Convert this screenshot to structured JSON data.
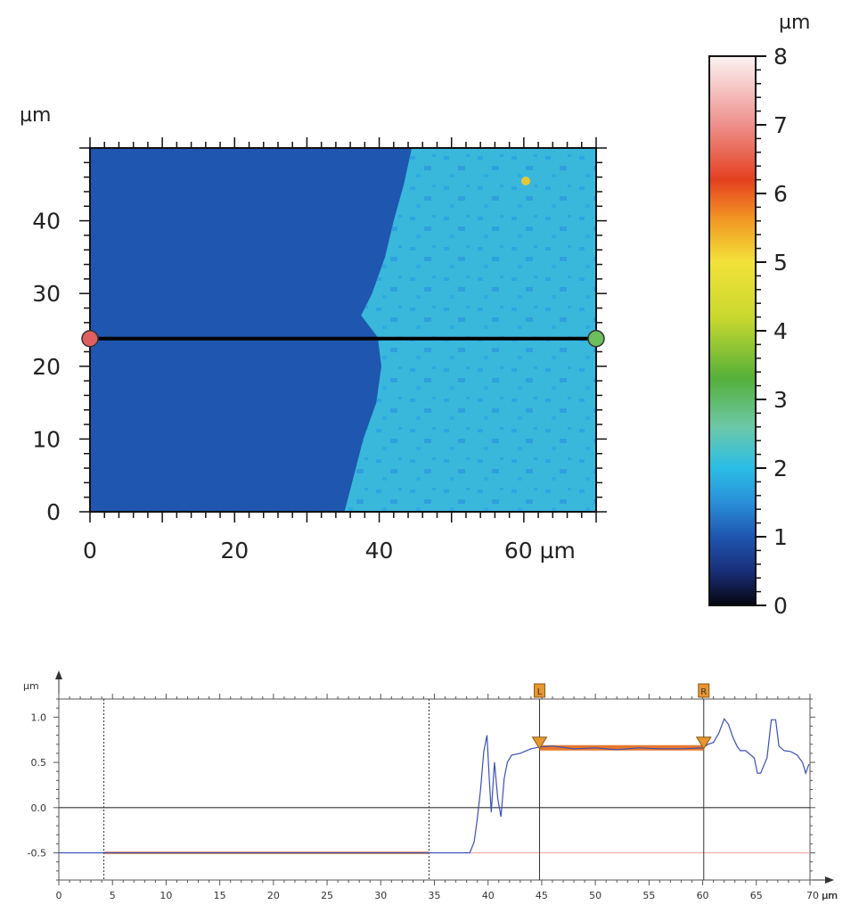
{
  "chart_data": [
    {
      "type": "heatmap",
      "xlabel_unit": "µm",
      "ylabel_unit": "µm",
      "xlim": [
        0,
        70
      ],
      "ylim": [
        0,
        50
      ],
      "x_ticks": [
        "0",
        "20",
        "40",
        "60 µm"
      ],
      "x_tick_values": [
        0,
        20,
        40,
        60
      ],
      "y_ticks": [
        "0",
        "10",
        "20",
        "30",
        "40"
      ],
      "y_tick_values": [
        0,
        10,
        20,
        30,
        40
      ],
      "description_values": {
        "left_region_height_um": 1.0,
        "right_region_height_um": 2.2,
        "boundary_x_um": [
          [
            0,
            35.2
          ],
          [
            5,
            36.5
          ],
          [
            10,
            37.8
          ],
          [
            15,
            39.6
          ],
          [
            20,
            40.3
          ],
          [
            24,
            39.8
          ],
          [
            27,
            37.5
          ],
          [
            30,
            39.0
          ],
          [
            35,
            40.8
          ],
          [
            40,
            42.0
          ],
          [
            45,
            43.4
          ],
          [
            50,
            44.5
          ]
        ]
      },
      "profile_line_y_um": 23.8,
      "colorbar": {
        "unit": "µm",
        "range": [
          0,
          8
        ],
        "ticks": [
          "0",
          "1",
          "2",
          "3",
          "4",
          "5",
          "6",
          "7",
          "8"
        ],
        "tick_values": [
          0,
          1,
          2,
          3,
          4,
          5,
          6,
          7,
          8
        ],
        "colormap_stops": [
          {
            "value": 0,
            "color": "#05050f"
          },
          {
            "value": 0.5,
            "color": "#1a2f7a"
          },
          {
            "value": 1,
            "color": "#1f56b0"
          },
          {
            "value": 1.5,
            "color": "#2a8fd8"
          },
          {
            "value": 2,
            "color": "#2bbde6"
          },
          {
            "value": 2.6,
            "color": "#6cc8a8"
          },
          {
            "value": 3.3,
            "color": "#55b03a"
          },
          {
            "value": 4.2,
            "color": "#c9d82e"
          },
          {
            "value": 5,
            "color": "#f2e23a"
          },
          {
            "value": 5.6,
            "color": "#f29a24"
          },
          {
            "value": 6.2,
            "color": "#e4401f"
          },
          {
            "value": 7,
            "color": "#ee8f8c"
          },
          {
            "value": 8,
            "color": "#fbf3f3"
          }
        ]
      }
    },
    {
      "type": "line",
      "ylabel": "µm",
      "xlabel": "µm",
      "xlim": [
        0,
        70
      ],
      "ylim": [
        -0.8,
        1.2
      ],
      "x_ticks": [
        "0",
        "5",
        "10",
        "15",
        "20",
        "25",
        "30",
        "35",
        "40",
        "45",
        "50",
        "55",
        "60",
        "65",
        "70 µm"
      ],
      "x_tick_values": [
        0,
        5,
        10,
        15,
        20,
        25,
        30,
        35,
        40,
        45,
        50,
        55,
        60,
        65,
        70
      ],
      "y_ticks": [
        "-0.5",
        "0.0",
        "0.5",
        "1.0"
      ],
      "y_tick_values": [
        -0.5,
        0.0,
        0.5,
        1.0
      ],
      "x": [
        0,
        4,
        10,
        20,
        30,
        34.5,
        37,
        38.3,
        38.7,
        39.0,
        39.3,
        39.6,
        39.9,
        40.1,
        40.3,
        40.6,
        40.9,
        41.2,
        41.5,
        41.8,
        42.2,
        43,
        44,
        44.8,
        46,
        48,
        50,
        52,
        54,
        56,
        58,
        60,
        60.5,
        61,
        61.5,
        62,
        62.4,
        62.8,
        63.2,
        63.5,
        64,
        64.8,
        65.1,
        65.4,
        66,
        66.4,
        66.8,
        67.1,
        67.6,
        68.2,
        68.8,
        69.3,
        69.6,
        69.9
      ],
      "y": [
        -0.5,
        -0.5,
        -0.5,
        -0.5,
        -0.5,
        -0.5,
        -0.5,
        -0.5,
        -0.38,
        -0.12,
        0.2,
        0.62,
        0.8,
        0.35,
        -0.05,
        0.5,
        0.1,
        -0.1,
        0.32,
        0.5,
        0.58,
        0.6,
        0.65,
        0.67,
        0.68,
        0.65,
        0.66,
        0.64,
        0.66,
        0.65,
        0.65,
        0.66,
        0.7,
        0.72,
        0.82,
        0.98,
        0.92,
        0.78,
        0.68,
        0.63,
        0.63,
        0.55,
        0.38,
        0.38,
        0.55,
        0.97,
        0.97,
        0.68,
        0.63,
        0.62,
        0.58,
        0.5,
        0.38,
        0.48
      ],
      "line_color": "#3b4fb8",
      "vertical_dashed_lines_x": [
        4.2,
        34.5
      ],
      "vertical_solid_lines_x": [
        44.8,
        60.1
      ],
      "reference_line_y": -0.5,
      "reference_line_color": "#f0a0a0",
      "baseline_highlight": {
        "x_start": 4.2,
        "x_end": 34.5,
        "y": -0.5,
        "color": "#e8782a"
      },
      "step_highlight": {
        "x_start": 44.8,
        "x_end": 60.1,
        "y": 0.66,
        "color": "#e8782a"
      },
      "markers": [
        {
          "label": "L",
          "x": 44.8
        },
        {
          "label": "R",
          "x": 60.1
        }
      ],
      "marker_color": "#e8962f"
    }
  ]
}
